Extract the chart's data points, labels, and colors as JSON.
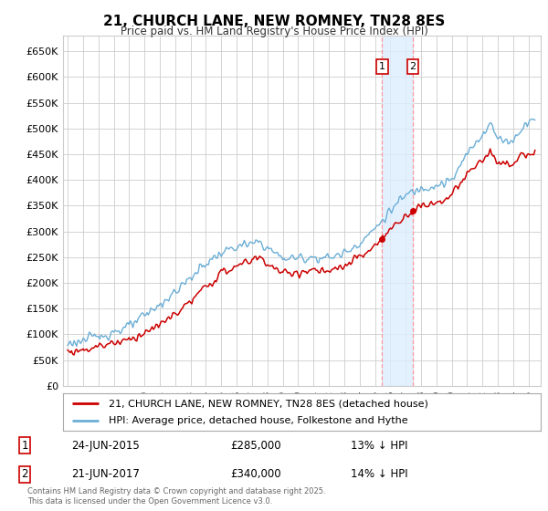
{
  "title": "21, CHURCH LANE, NEW ROMNEY, TN28 8ES",
  "subtitle": "Price paid vs. HM Land Registry's House Price Index (HPI)",
  "legend_line1": "21, CHURCH LANE, NEW ROMNEY, TN28 8ES (detached house)",
  "legend_line2": "HPI: Average price, detached house, Folkestone and Hythe",
  "transaction1_date": "24-JUN-2015",
  "transaction1_price": "£285,000",
  "transaction1_hpi": "13% ↓ HPI",
  "transaction1_year": 2015.46,
  "transaction1_value": 285000,
  "transaction2_date": "21-JUN-2017",
  "transaction2_price": "£340,000",
  "transaction2_hpi": "14% ↓ HPI",
  "transaction2_year": 2017.46,
  "transaction2_value": 340000,
  "footer": "Contains HM Land Registry data © Crown copyright and database right 2025.\nThis data is licensed under the Open Government Licence v3.0.",
  "hpi_color": "#6BAED6",
  "price_color": "#CC0000",
  "vline_color": "#FF9999",
  "vband_color": "#DDEEFF",
  "background_color": "#FFFFFF",
  "grid_color": "#CCCCCC",
  "ylim": [
    0,
    680000
  ],
  "ytick_values": [
    0,
    50000,
    100000,
    150000,
    200000,
    250000,
    300000,
    350000,
    400000,
    450000,
    500000,
    550000,
    600000,
    650000
  ],
  "xlim_start": 1994.7,
  "xlim_end": 2025.8,
  "label_border_color": "#CC0000"
}
